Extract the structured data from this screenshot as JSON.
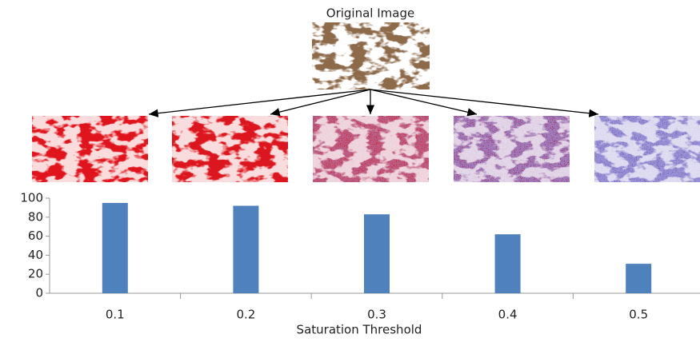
{
  "chart_data": {
    "type": "bar",
    "image_label": "Original Image",
    "x_label": "Saturation Threshold",
    "categories": [
      "0.1",
      "0.2",
      "0.3",
      "0.4",
      "0.5"
    ],
    "values": [
      95,
      92,
      83,
      62,
      31
    ],
    "color": "#4f81bd",
    "ylim": [
      0,
      100
    ],
    "yticks": [
      0,
      20,
      40,
      60,
      80,
      100
    ],
    "grid": false
  }
}
